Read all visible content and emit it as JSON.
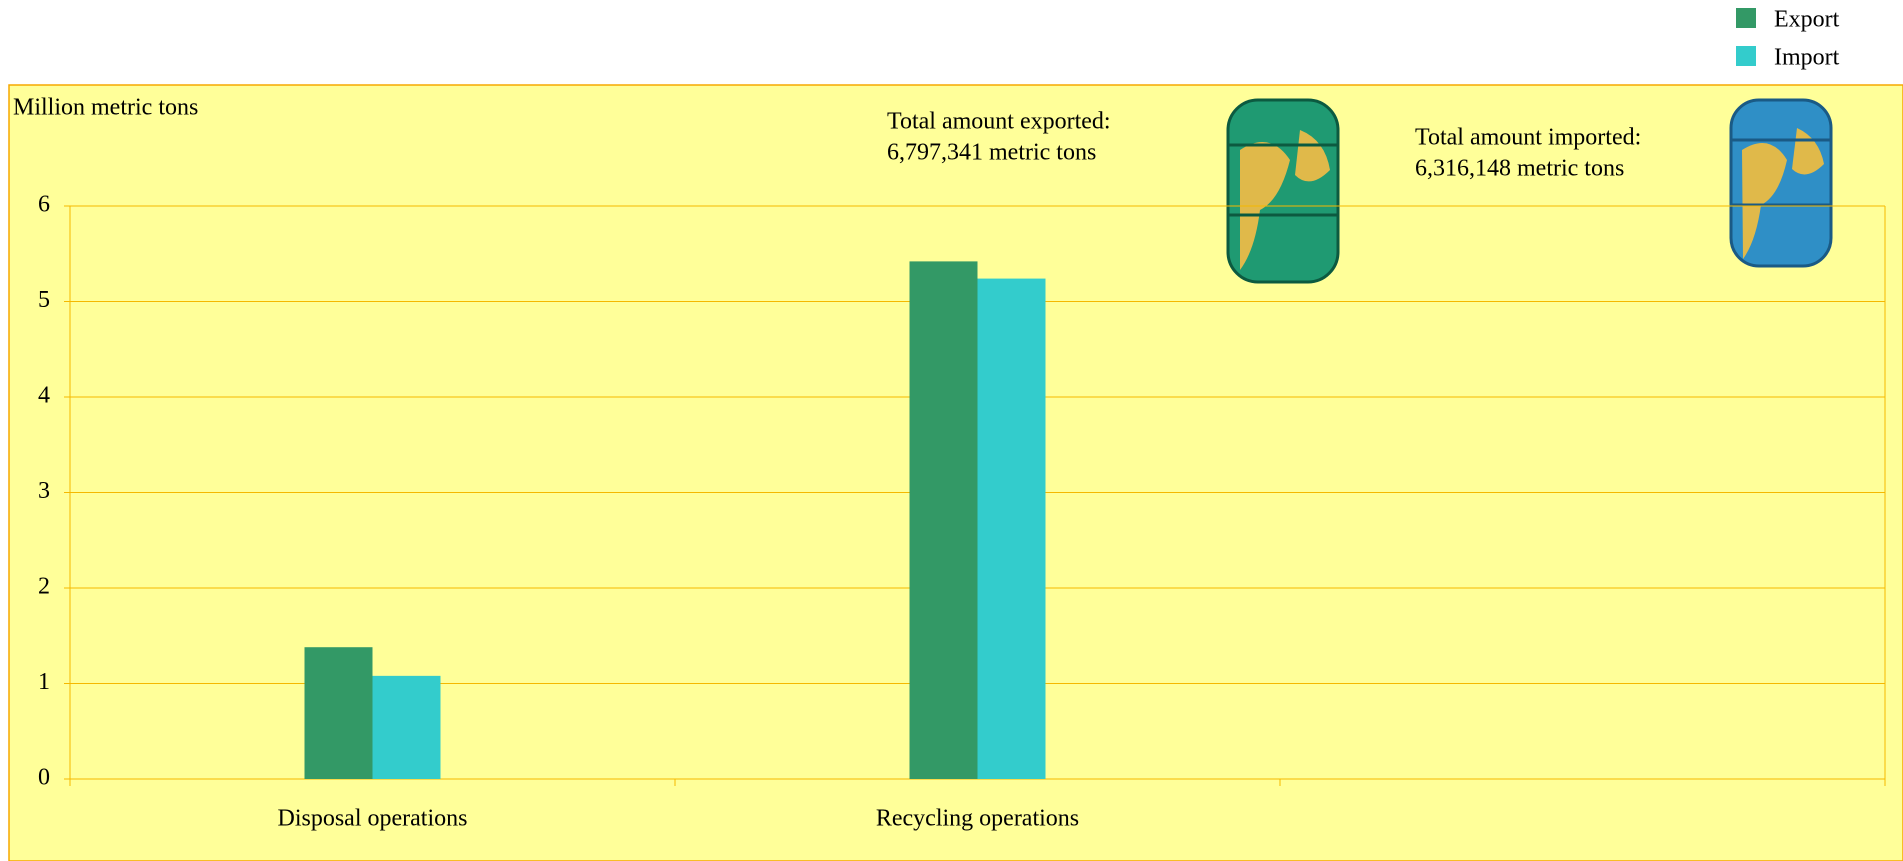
{
  "chart_data": {
    "type": "bar",
    "y_axis_label": "Million metric tons",
    "categories": [
      "Disposal operations",
      "Recycling operations",
      null
    ],
    "series": [
      {
        "name": "Export",
        "color": "#339966",
        "values": [
          1.38,
          5.42,
          null
        ]
      },
      {
        "name": "Import",
        "color": "#33cccc",
        "values": [
          1.08,
          5.24,
          null
        ]
      }
    ],
    "ylim": [
      0,
      6
    ],
    "yticks": [
      0,
      1,
      2,
      3,
      4,
      5,
      6
    ],
    "grid": true,
    "legend": "top-right",
    "background": "#ffff99",
    "annotations": [
      {
        "lines": [
          "Total amount exported:",
          "6,797,341 metric tons"
        ]
      },
      {
        "lines": [
          "Total amount imported:",
          "6,316,148  metric tons"
        ]
      }
    ]
  }
}
